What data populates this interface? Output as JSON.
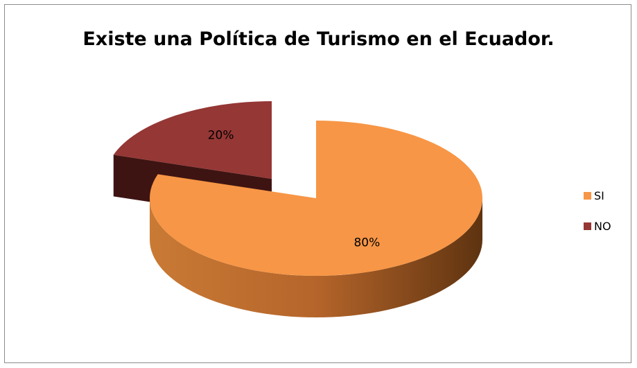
{
  "chart_data": {
    "type": "pie",
    "title": "Existe una Política de Turismo en el Ecuador.",
    "slices": [
      {
        "label": "SI",
        "value": 80,
        "data_label": "80%",
        "color": "#F79646",
        "side_color": "#B06A2C"
      },
      {
        "label": "NO",
        "value": 20,
        "data_label": "20%",
        "color": "#953735",
        "side_color": "#4A1816"
      }
    ],
    "legend_position": "right",
    "style": "3d-exploded"
  }
}
